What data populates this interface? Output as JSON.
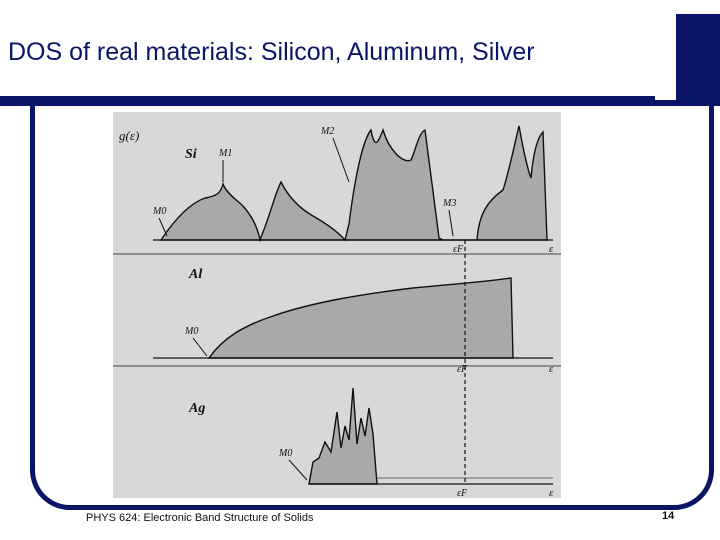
{
  "slide": {
    "title": "DOS of real materials: Silicon, Aluminum, Silver",
    "footer": "PHYS 624: Electronic Band Structure of Solids",
    "page_number": "14",
    "colors": {
      "accent": "#0b1566",
      "figure_bg": "#d8d8d8"
    }
  },
  "figure": {
    "y_label": "g(ε)",
    "panels": [
      {
        "element": "Si",
        "critical_points": [
          "M0",
          "M1",
          "M2",
          "M3"
        ],
        "axis_label": "ε",
        "fermi_label": "εF"
      },
      {
        "element": "Al",
        "critical_points": [
          "M0"
        ],
        "axis_label": "ε",
        "fermi_label": "εF"
      },
      {
        "element": "Ag",
        "critical_points": [
          "M0"
        ],
        "axis_label": "ε",
        "fermi_label": "εF"
      }
    ]
  }
}
